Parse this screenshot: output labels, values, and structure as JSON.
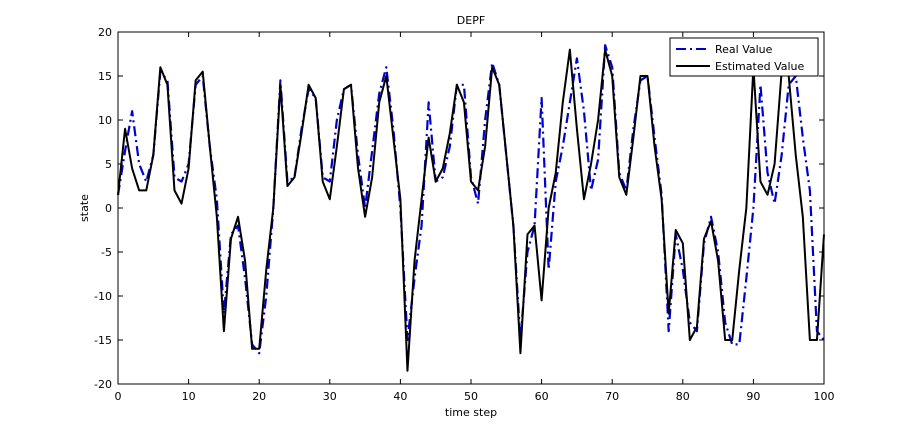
{
  "chart_data": {
    "type": "line",
    "title": "DEPF",
    "xlabel": "time step",
    "ylabel": "state",
    "xlim": [
      0,
      100
    ],
    "ylim": [
      -20,
      20
    ],
    "xticks": [
      0,
      10,
      20,
      30,
      40,
      50,
      60,
      70,
      80,
      90,
      100
    ],
    "yticks": [
      -20,
      -15,
      -10,
      -5,
      0,
      5,
      10,
      15,
      20
    ],
    "grid": false,
    "legend_position": "top-right",
    "series": [
      {
        "name": "Real Value",
        "color": "#0000cc",
        "line_style": "dash-dot",
        "x": [
          0,
          1,
          2,
          3,
          4,
          5,
          6,
          7,
          8,
          9,
          10,
          11,
          12,
          13,
          14,
          15,
          16,
          17,
          18,
          19,
          20,
          21,
          22,
          23,
          24,
          25,
          26,
          27,
          28,
          29,
          30,
          31,
          32,
          33,
          34,
          35,
          36,
          37,
          38,
          39,
          40,
          41,
          42,
          43,
          44,
          45,
          46,
          47,
          48,
          49,
          50,
          51,
          52,
          53,
          54,
          55,
          56,
          57,
          58,
          59,
          60,
          61,
          62,
          63,
          64,
          65,
          66,
          67,
          68,
          69,
          70,
          71,
          72,
          73,
          74,
          75,
          76,
          77,
          78,
          79,
          80,
          81,
          82,
          83,
          84,
          85,
          86,
          87,
          88,
          89,
          90,
          91,
          92,
          93,
          94,
          95,
          96,
          97,
          98,
          99,
          100
        ],
        "y": [
          1.5,
          6.5,
          11,
          5,
          3,
          6,
          15.5,
          14.5,
          3.5,
          3,
          5,
          14,
          15,
          7,
          1,
          -12,
          -3,
          -2,
          -8,
          -15.5,
          -16.5,
          -10,
          0,
          14.5,
          3,
          3.5,
          9,
          13.5,
          12.5,
          3.5,
          3,
          10,
          13.5,
          14,
          6,
          0,
          6.5,
          13,
          16,
          9,
          0,
          -15,
          -8,
          -2,
          12,
          3,
          3.5,
          7,
          14,
          14,
          3.5,
          0.5,
          10,
          16.5,
          14,
          6,
          -2,
          -15,
          -5,
          -2,
          12.5,
          -7,
          3,
          7,
          12,
          17,
          11,
          2,
          5.5,
          18.5,
          16,
          4,
          2,
          9,
          14.5,
          15,
          8,
          1.5,
          -14,
          -3,
          -7,
          -13,
          -14,
          -4,
          -1,
          -5,
          -13,
          -15.5,
          -15.5,
          -8,
          0,
          14,
          4,
          0.5,
          6,
          14,
          15,
          8,
          2,
          -14,
          -15
        ]
      },
      {
        "name": "Estimated Value",
        "color": "#000000",
        "line_style": "solid",
        "x": [
          0,
          1,
          2,
          3,
          4,
          5,
          6,
          7,
          8,
          9,
          10,
          11,
          12,
          13,
          14,
          15,
          16,
          17,
          18,
          19,
          20,
          21,
          22,
          23,
          24,
          25,
          26,
          27,
          28,
          29,
          30,
          31,
          32,
          33,
          34,
          35,
          36,
          37,
          38,
          39,
          40,
          41,
          42,
          43,
          44,
          45,
          46,
          47,
          48,
          49,
          50,
          51,
          52,
          53,
          54,
          55,
          56,
          57,
          58,
          59,
          60,
          61,
          62,
          63,
          64,
          65,
          66,
          67,
          68,
          69,
          70,
          71,
          72,
          73,
          74,
          75,
          76,
          77,
          78,
          79,
          80,
          81,
          82,
          83,
          84,
          85,
          86,
          87,
          88,
          89,
          90,
          91,
          92,
          93,
          94,
          95,
          96,
          97,
          98,
          99,
          100
        ],
        "y": [
          1.5,
          9,
          4.5,
          2,
          2,
          6,
          16,
          14,
          2,
          0.5,
          4.5,
          14.5,
          15.5,
          7,
          -1,
          -14,
          -3.5,
          -1,
          -6,
          -16,
          -16,
          -7,
          0,
          14,
          2.5,
          3.5,
          8.5,
          14,
          12.5,
          3,
          1,
          7,
          13.5,
          14,
          4.5,
          -1,
          3.5,
          12,
          15,
          8,
          1,
          -18.5,
          -6,
          1,
          8,
          3,
          4.5,
          8.5,
          14,
          12,
          3,
          2,
          7,
          16,
          14,
          6,
          -2,
          -16.5,
          -3,
          -2,
          -10.5,
          0,
          4,
          12,
          18,
          9,
          1,
          5,
          10,
          18,
          15,
          3.5,
          1.5,
          8,
          15,
          15,
          7,
          1,
          -12,
          -2.5,
          -4,
          -15,
          -13.5,
          -3.5,
          -1.5,
          -6,
          -15,
          -15,
          -7,
          0,
          16,
          3,
          1.5,
          5,
          15.5,
          15,
          6,
          -1,
          -15,
          -15,
          -3
        ]
      }
    ]
  }
}
